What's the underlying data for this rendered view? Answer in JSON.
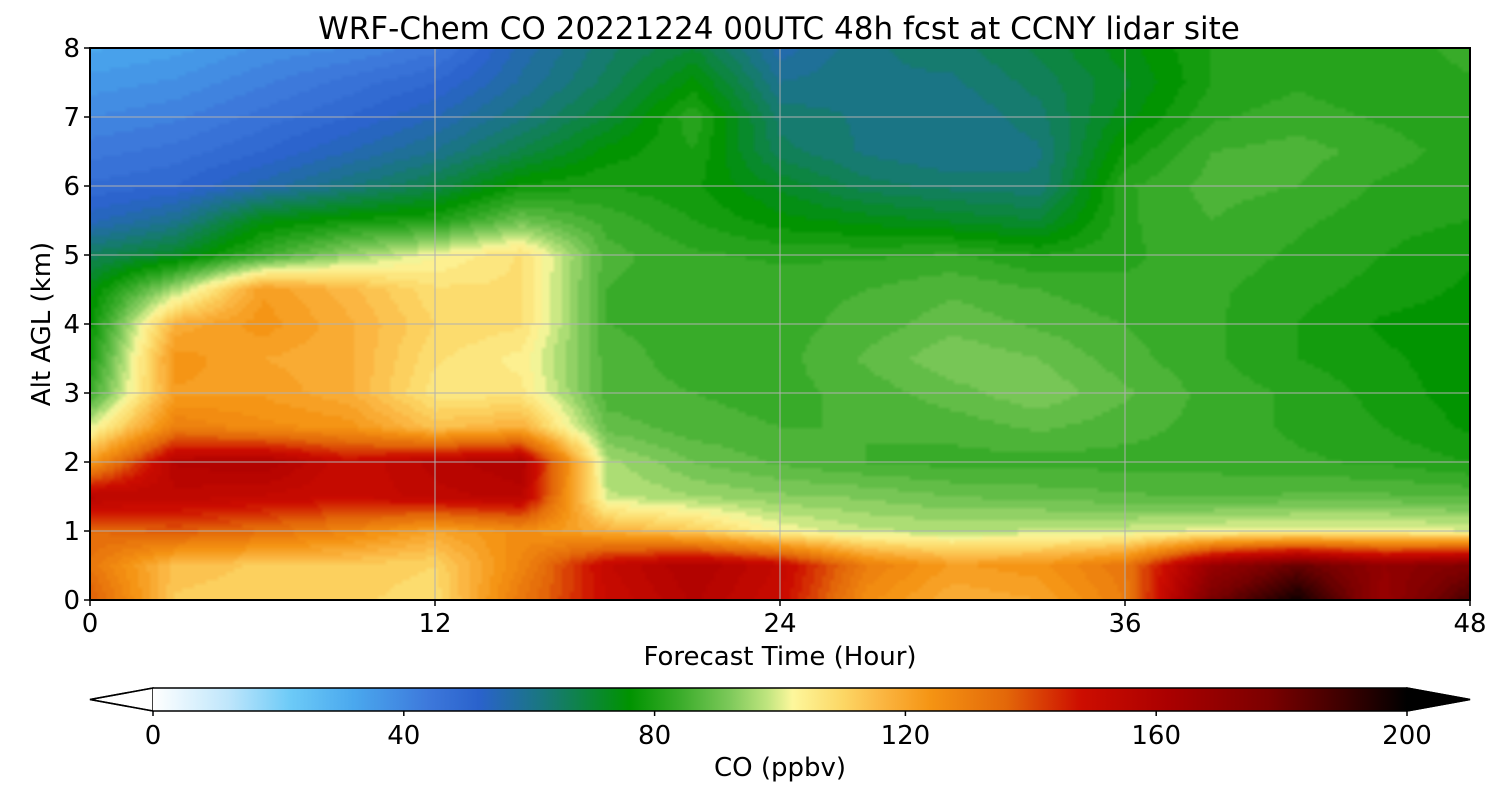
{
  "chart_data": {
    "type": "heatmap",
    "title": "WRF-Chem CO  20221224 00UTC 48h fcst at CCNY lidar site",
    "xlabel": "Forecast Time (Hour)",
    "ylabel": "Alt AGL (km)",
    "xlim": [
      0,
      48
    ],
    "ylim": [
      0,
      8
    ],
    "x_ticks": [
      "0",
      "12",
      "24",
      "36",
      "48"
    ],
    "y_ticks": [
      "0",
      "1",
      "2",
      "3",
      "4",
      "5",
      "6",
      "7",
      "8"
    ],
    "grid": true,
    "colorbar": {
      "label": "CO  (ppbv)",
      "range": [
        0,
        200
      ],
      "extend": "both",
      "ticks": [
        "0",
        "40",
        "80",
        "120",
        "160",
        "200"
      ],
      "colors": [
        {
          "v": 0,
          "c": "#ffffff"
        },
        {
          "v": 12,
          "c": "#bfe6fb"
        },
        {
          "v": 22,
          "c": "#6ccaf7"
        },
        {
          "v": 32,
          "c": "#4aa8ee"
        },
        {
          "v": 44,
          "c": "#3d78db"
        },
        {
          "v": 52,
          "c": "#2a62cc"
        },
        {
          "v": 62,
          "c": "#19777f"
        },
        {
          "v": 76,
          "c": "#009300"
        },
        {
          "v": 84,
          "c": "#3aac2a"
        },
        {
          "v": 92,
          "c": "#7dc95a"
        },
        {
          "v": 98,
          "c": "#c0e57f"
        },
        {
          "v": 102,
          "c": "#fdf79c"
        },
        {
          "v": 110,
          "c": "#fcd765"
        },
        {
          "v": 116,
          "c": "#fbb743"
        },
        {
          "v": 124,
          "c": "#f59413"
        },
        {
          "v": 136,
          "c": "#e36809"
        },
        {
          "v": 148,
          "c": "#cd0d00"
        },
        {
          "v": 162,
          "c": "#aa0000"
        },
        {
          "v": 178,
          "c": "#7b0000"
        },
        {
          "v": 190,
          "c": "#3c0000"
        },
        {
          "v": 200,
          "c": "#000000"
        }
      ]
    },
    "heights_km": [
      0,
      0.5,
      1,
      1.5,
      2,
      2.5,
      3,
      3.5,
      4,
      4.5,
      5,
      5.5,
      6,
      6.5,
      7,
      7.5,
      8
    ],
    "hours": [
      0,
      3,
      6,
      9,
      12,
      15,
      18,
      21,
      24,
      27,
      30,
      33,
      36,
      39,
      42,
      45,
      48
    ],
    "values_ppbv": [
      [
        138,
        112,
        111,
        111,
        108,
        132,
        150,
        158,
        150,
        126,
        118,
        120,
        130,
        178,
        198,
        168,
        188
      ],
      [
        132,
        114,
        112,
        112,
        110,
        128,
        152,
        160,
        152,
        130,
        122,
        124,
        132,
        168,
        182,
        170,
        176
      ],
      [
        135,
        138,
        134,
        128,
        120,
        126,
        118,
        112,
        102,
        98,
        97,
        98,
        99,
        101,
        102,
        102,
        100
      ],
      [
        156,
        154,
        152,
        150,
        154,
        156,
        98,
        95,
        93,
        92,
        90,
        89,
        88,
        87,
        88,
        88,
        87
      ],
      [
        122,
        158,
        160,
        150,
        156,
        160,
        96,
        90,
        87,
        85,
        84,
        84,
        84,
        84,
        83,
        82,
        80
      ],
      [
        100,
        130,
        126,
        124,
        114,
        118,
        89,
        86,
        85,
        85,
        86,
        88,
        86,
        84,
        82,
        80,
        77
      ],
      [
        84,
        122,
        122,
        118,
        106,
        106,
        86,
        85,
        84,
        86,
        89,
        92,
        88,
        84,
        82,
        79,
        76
      ],
      [
        79,
        124,
        120,
        118,
        108,
        104,
        86,
        84,
        84,
        88,
        92,
        90,
        86,
        83,
        80,
        78,
        76
      ],
      [
        76,
        118,
        124,
        118,
        110,
        108,
        85,
        84,
        84,
        86,
        89,
        87,
        85,
        83,
        80,
        77,
        76
      ],
      [
        74,
        96,
        122,
        116,
        108,
        108,
        85,
        83,
        84,
        85,
        87,
        85,
        83,
        83,
        81,
        79,
        77
      ],
      [
        66,
        72,
        84,
        94,
        102,
        108,
        86,
        83,
        82,
        82,
        83,
        80,
        82,
        84,
        82,
        80,
        78
      ],
      [
        54,
        60,
        74,
        78,
        80,
        90,
        84,
        80,
        76,
        74,
        72,
        70,
        82,
        85,
        83,
        81,
        80
      ],
      [
        48,
        50,
        56,
        62,
        68,
        78,
        80,
        78,
        72,
        66,
        64,
        63,
        82,
        86,
        85,
        82,
        80
      ],
      [
        44,
        46,
        50,
        55,
        60,
        68,
        76,
        80,
        66,
        62,
        60,
        62,
        78,
        85,
        86,
        84,
        81
      ],
      [
        40,
        42,
        46,
        50,
        55,
        62,
        70,
        82,
        64,
        62,
        60,
        64,
        74,
        82,
        84,
        82,
        80
      ],
      [
        36,
        38,
        42,
        46,
        50,
        58,
        66,
        76,
        60,
        62,
        62,
        66,
        72,
        80,
        82,
        80,
        82
      ],
      [
        32,
        34,
        38,
        40,
        44,
        56,
        64,
        70,
        56,
        62,
        64,
        68,
        74,
        80,
        82,
        80,
        84
      ]
    ]
  }
}
